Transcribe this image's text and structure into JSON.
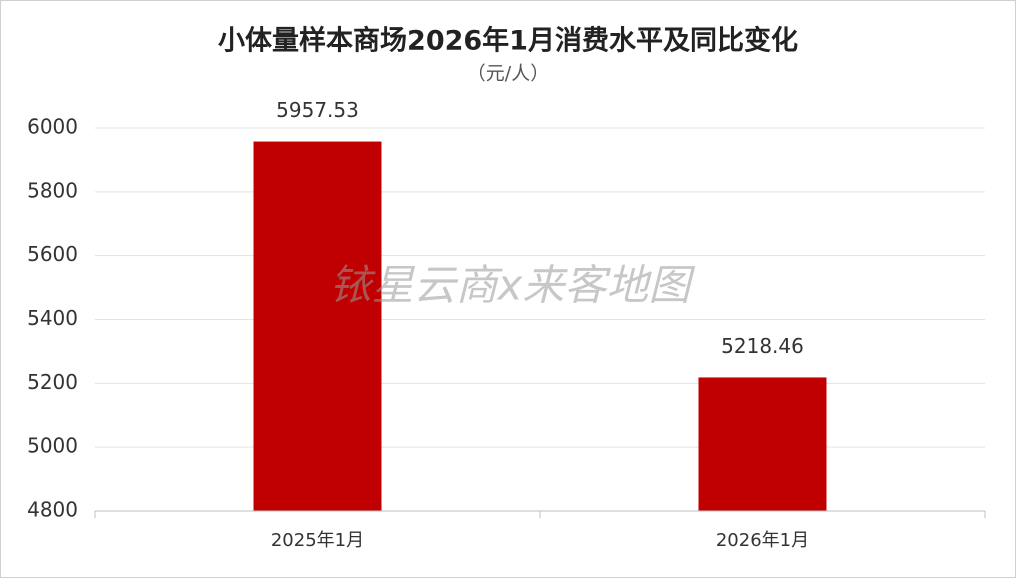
{
  "chart_data": {
    "type": "bar",
    "title": "小体量样本商场2026年1月消费水平及同比变化",
    "subtitle": "（元/人）",
    "watermark": "铱星云商x来客地图",
    "categories": [
      "2025年1月",
      "2026年1月"
    ],
    "values": [
      5957.53,
      5218.46
    ],
    "color": "#c00000",
    "ylim": [
      4800,
      6000
    ],
    "yticks": [
      4800,
      5000,
      5200,
      5400,
      5600,
      5800,
      6000
    ],
    "grid": true
  }
}
